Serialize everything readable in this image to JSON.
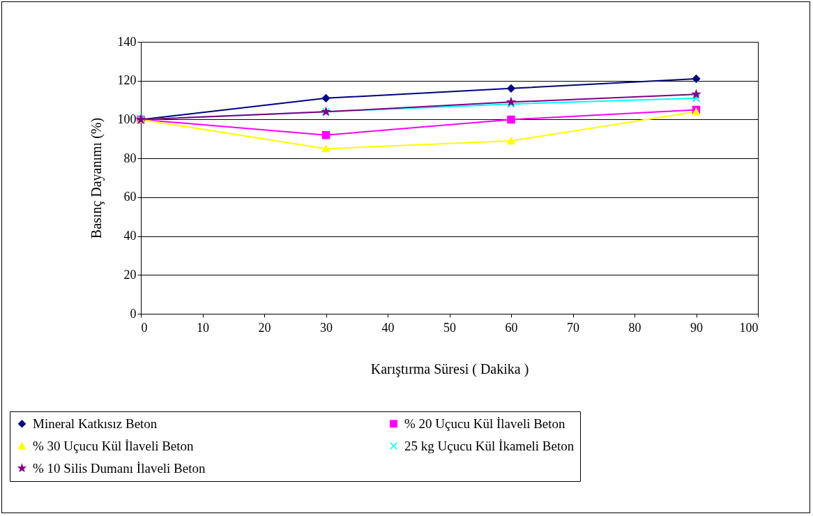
{
  "chart_data": {
    "type": "line",
    "xlabel": "Karıştırma Süresi ( Dakika )",
    "ylabel": "Basınç Dayanımı (%)",
    "x": [
      0,
      30,
      60,
      90
    ],
    "xlim": [
      0,
      100
    ],
    "xticks": [
      0,
      10,
      20,
      30,
      40,
      50,
      60,
      70,
      80,
      90,
      100
    ],
    "ylim": [
      0,
      140
    ],
    "yticks": [
      0,
      20,
      40,
      60,
      80,
      100,
      120,
      140
    ],
    "grid": "y",
    "legend": "bottom",
    "series": [
      {
        "name": "Mineral Katkısız Beton",
        "color": "#000080",
        "marker": "diamond",
        "values": [
          100,
          111,
          116,
          121
        ]
      },
      {
        "name": "% 20 Uçucu Kül İlaveli Beton",
        "color": "#ff00ff",
        "marker": "square",
        "values": [
          100,
          92,
          100,
          105
        ]
      },
      {
        "name": "% 30 Uçucu Kül İlaveli Beton",
        "color": "#ffff00",
        "marker": "triangle",
        "values": [
          100,
          85,
          89,
          104
        ]
      },
      {
        "name": "25 kg Uçucu Kül İkameli Beton",
        "color": "#00ffff",
        "marker": "cross",
        "values": [
          100,
          104,
          108,
          111
        ]
      },
      {
        "name": "% 10 Silis Dumanı İlaveli Beton",
        "color": "#800080",
        "marker": "star",
        "values": [
          100,
          104,
          109,
          113
        ]
      }
    ]
  }
}
